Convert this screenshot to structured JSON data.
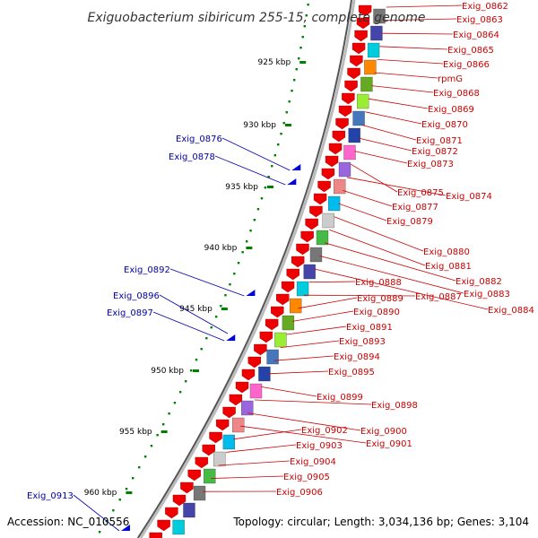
{
  "title": "Exiguobacterium sibiricum 255-15, complete genome",
  "accession": "Accession: NC_010556",
  "topology": "Topology: circular; Length: 3,034,136 bp; Genes: 3,104",
  "colors": {
    "forward_label": "#cc0000",
    "reverse_label": "#0000aa",
    "backbone": "#888888",
    "tick": "#008000",
    "forward_gene": "#ee0000",
    "reverse_gene": "#0000dd"
  },
  "ticks": [
    "925 kbp",
    "930 kbp",
    "935 kbp",
    "940 kbp",
    "945 kbp",
    "950 kbp",
    "955 kbp",
    "960 kbp"
  ],
  "forward_labels": [
    "Exig_0862",
    "Exig_0863",
    "Exig_0864",
    "Exig_0865",
    "Exig_0866",
    "rpmG",
    "Exig_0868",
    "Exig_0869",
    "Exig_0870",
    "Exig_0871",
    "Exig_0872",
    "Exig_0873",
    "Exig_0875",
    "Exig_0874",
    "Exig_0877",
    "Exig_0879",
    "Exig_0880",
    "Exig_0881",
    "Exig_0882",
    "Exig_0883",
    "Exig_0884",
    "Exig_0888",
    "Exig_0887",
    "Exig_0889",
    "Exig_0890",
    "Exig_0891",
    "Exig_0893",
    "Exig_0894",
    "Exig_0895",
    "Exig_0899",
    "Exig_0898",
    "Exig_0900",
    "Exig_0901",
    "Exig_0902",
    "Exig_0903",
    "Exig_0904",
    "Exig_0905",
    "Exig_0906"
  ],
  "reverse_labels": [
    "Exig_0876",
    "Exig_0878",
    "Exig_0892",
    "Exig_0896",
    "Exig_0897",
    "Exig_0913"
  ]
}
